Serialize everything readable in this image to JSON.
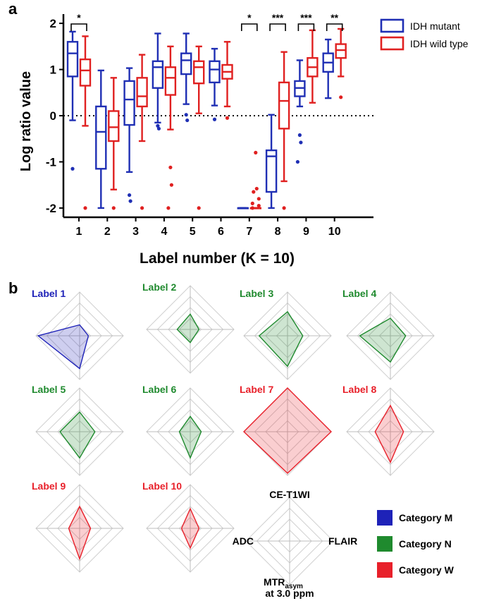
{
  "panel_a": {
    "panel_letter": "a",
    "ylabel": "Log ratio value",
    "xlabel": "Label number (K = 10)",
    "yticks": [
      "2",
      "1",
      "0",
      "-1",
      "-2"
    ],
    "xticks": [
      "1",
      "2",
      "3",
      "4",
      "5",
      "6",
      "7",
      "8",
      "9",
      "10"
    ],
    "significance": [
      {
        "label": "1",
        "stars": "*"
      },
      {
        "label": "7",
        "stars": "*"
      },
      {
        "label": "8",
        "stars": "***"
      },
      {
        "label": "9",
        "stars": "***"
      },
      {
        "label": "10",
        "stars": "**"
      }
    ],
    "legend": [
      {
        "name": "IDH mutant",
        "color": "#1f2fb4"
      },
      {
        "name": "IDH wild type",
        "color": "#e02020"
      }
    ]
  },
  "panel_b": {
    "panel_letter": "b",
    "axes_labels": {
      "top": "CE-T1WI",
      "right": "FLAIR",
      "bottom_main": "MTR",
      "bottom_sub": "asym",
      "bottom_line2": "at 3.0 ppm",
      "left": "ADC"
    },
    "legend": [
      {
        "name": "Category M",
        "color": "#1e22b8"
      },
      {
        "name": "Category N",
        "color": "#1f8a2e"
      },
      {
        "name": "Category W",
        "color": "#e8202a"
      }
    ]
  },
  "chart_data": [
    {
      "type": "box",
      "ylabel": "Log ratio value",
      "xlabel": "Label number (K = 10)",
      "ylim": [
        -2.2,
        2.2
      ],
      "reference_line": 0,
      "categories": [
        "1",
        "2",
        "3",
        "4",
        "5",
        "6",
        "7",
        "8",
        "9",
        "10"
      ],
      "series": [
        {
          "name": "IDH mutant",
          "color": "#1f2fb4",
          "boxes": [
            {
              "min": -0.1,
              "q1": 0.85,
              "median": 1.35,
              "q3": 1.6,
              "max": 1.82,
              "outliers": [
                -1.15
              ]
            },
            {
              "min": -2.0,
              "q1": -1.15,
              "median": -0.35,
              "q3": 0.2,
              "max": 0.98,
              "outliers": []
            },
            {
              "min": -1.22,
              "q1": -0.2,
              "median": 0.35,
              "q3": 0.75,
              "max": 1.03,
              "outliers": [
                -1.72,
                -1.85
              ]
            },
            {
              "min": -0.15,
              "q1": 0.6,
              "median": 1.05,
              "q3": 1.18,
              "max": 1.78,
              "outliers": [
                -0.22,
                -0.28
              ]
            },
            {
              "min": 0.25,
              "q1": 0.9,
              "median": 1.2,
              "q3": 1.35,
              "max": 1.78,
              "outliers": [
                0.02,
                -0.1
              ]
            },
            {
              "min": 0.22,
              "q1": 0.72,
              "median": 1.0,
              "q3": 1.18,
              "max": 1.45,
              "outliers": [
                -0.08
              ]
            },
            {
              "min": -2.0,
              "q1": -2.0,
              "median": -2.0,
              "q3": -2.0,
              "max": -2.0,
              "outliers": []
            },
            {
              "min": -2.0,
              "q1": -1.65,
              "median": -0.88,
              "q3": -0.75,
              "max": 0.02,
              "outliers": []
            },
            {
              "min": 0.2,
              "q1": 0.42,
              "median": 0.6,
              "q3": 0.75,
              "max": 1.2,
              "outliers": [
                -0.42,
                -0.58,
                -1.0
              ]
            },
            {
              "min": 0.38,
              "q1": 0.95,
              "median": 1.15,
              "q3": 1.35,
              "max": 1.65,
              "outliers": []
            }
          ]
        },
        {
          "name": "IDH wild type",
          "color": "#e02020",
          "boxes": [
            {
              "min": -0.22,
              "q1": 0.65,
              "median": 0.98,
              "q3": 1.22,
              "max": 1.72,
              "outliers": [
                -2.0
              ]
            },
            {
              "min": -1.6,
              "q1": -0.55,
              "median": -0.25,
              "q3": 0.1,
              "max": 0.82,
              "outliers": [
                -2.0
              ]
            },
            {
              "min": -0.55,
              "q1": 0.2,
              "median": 0.42,
              "q3": 0.82,
              "max": 1.32,
              "outliers": [
                -2.0
              ]
            },
            {
              "min": -0.3,
              "q1": 0.45,
              "median": 0.82,
              "q3": 1.05,
              "max": 1.5,
              "outliers": [
                -1.12,
                -1.5,
                -2.0
              ]
            },
            {
              "min": 0.05,
              "q1": 0.7,
              "median": 1.05,
              "q3": 1.18,
              "max": 1.5,
              "outliers": [
                -2.0
              ]
            },
            {
              "min": 0.2,
              "q1": 0.8,
              "median": 0.95,
              "q3": 1.1,
              "max": 1.6,
              "outliers": [
                -0.05
              ]
            },
            {
              "min": -2.0,
              "q1": -2.0,
              "median": -2.0,
              "q3": -2.0,
              "max": -2.0,
              "outliers": [
                -0.8,
                -1.58,
                -1.65,
                -1.8,
                -1.9,
                -1.95,
                -2.0
              ]
            },
            {
              "min": -1.42,
              "q1": -0.28,
              "median": 0.32,
              "q3": 0.72,
              "max": 1.38,
              "outliers": [
                -2.0
              ]
            },
            {
              "min": 0.28,
              "q1": 0.85,
              "median": 1.05,
              "q3": 1.25,
              "max": 1.85,
              "outliers": []
            },
            {
              "min": 0.85,
              "q1": 1.25,
              "median": 1.42,
              "q3": 1.55,
              "max": 1.88,
              "outliers": [
                0.4
              ]
            }
          ]
        }
      ]
    },
    {
      "type": "radar",
      "axes": [
        "CE-T1WI",
        "FLAIR",
        "MTRasym at 3.0 ppm",
        "ADC"
      ],
      "max": 1.0,
      "charts": [
        {
          "title": "Label 1",
          "category": "M",
          "values": [
            0.25,
            0.2,
            0.75,
            0.95
          ]
        },
        {
          "title": "Label 2",
          "category": "N",
          "values": [
            0.35,
            0.2,
            0.3,
            0.3
          ]
        },
        {
          "title": "Label 3",
          "category": "N",
          "values": [
            0.55,
            0.35,
            0.7,
            0.65
          ]
        },
        {
          "title": "Label 4",
          "category": "N",
          "values": [
            0.4,
            0.35,
            0.6,
            0.7
          ]
        },
        {
          "title": "Label 5",
          "category": "N",
          "values": [
            0.45,
            0.35,
            0.6,
            0.45
          ]
        },
        {
          "title": "Label 6",
          "category": "N",
          "values": [
            0.35,
            0.25,
            0.6,
            0.25
          ]
        },
        {
          "title": "Label 7",
          "category": "W",
          "values": [
            1.0,
            1.0,
            0.95,
            1.0
          ]
        },
        {
          "title": "Label 8",
          "category": "W",
          "values": [
            0.6,
            0.3,
            0.7,
            0.35
          ]
        },
        {
          "title": "Label 9",
          "category": "W",
          "values": [
            0.5,
            0.25,
            0.7,
            0.25
          ]
        },
        {
          "title": "Label 10",
          "category": "W",
          "values": [
            0.45,
            0.2,
            0.45,
            0.2
          ]
        },
        {
          "title": "",
          "category": "",
          "values": [
            0,
            0,
            0,
            0
          ]
        }
      ]
    }
  ]
}
